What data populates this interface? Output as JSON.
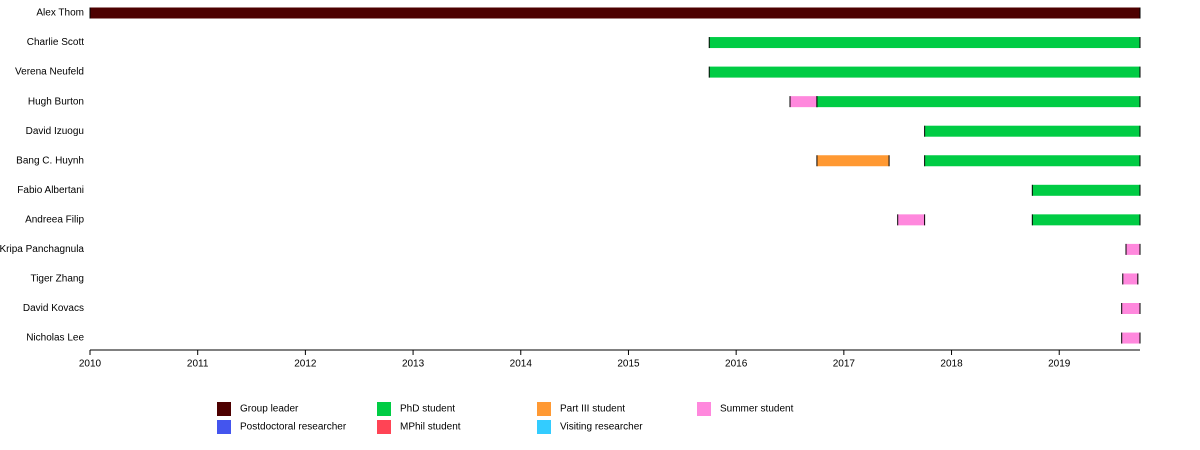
{
  "chart_data": {
    "type": "timeline",
    "rows": [
      {
        "name": "Alex Thom",
        "bars": [
          {
            "start": 2010,
            "end": 2019.75,
            "role": "Group leader"
          }
        ]
      },
      {
        "name": "Charlie Scott",
        "bars": [
          {
            "start": 2015.75,
            "end": 2019.75,
            "role": "PhD student"
          }
        ]
      },
      {
        "name": "Verena Neufeld",
        "bars": [
          {
            "start": 2015.75,
            "end": 2019.75,
            "role": "PhD student"
          }
        ]
      },
      {
        "name": "Hugh Burton",
        "bars": [
          {
            "start": 2016.5,
            "end": 2016.75,
            "role": "Summer student"
          },
          {
            "start": 2016.75,
            "end": 2019.75,
            "role": "PhD student"
          }
        ]
      },
      {
        "name": "David Izuogu",
        "bars": [
          {
            "start": 2017.75,
            "end": 2019.75,
            "role": "PhD student"
          }
        ]
      },
      {
        "name": "Bang C. Huynh",
        "bars": [
          {
            "start": 2016.75,
            "end": 2017.42,
            "role": "Part III student"
          },
          {
            "start": 2017.75,
            "end": 2019.75,
            "role": "PhD student"
          }
        ]
      },
      {
        "name": "Fabio Albertani",
        "bars": [
          {
            "start": 2018.75,
            "end": 2019.75,
            "role": "PhD student"
          }
        ]
      },
      {
        "name": "Andreea Filip",
        "bars": [
          {
            "start": 2017.5,
            "end": 2017.75,
            "role": "Summer student"
          },
          {
            "start": 2018.75,
            "end": 2019.75,
            "role": "PhD student"
          }
        ]
      },
      {
        "name": "Kripa Panchagnula",
        "bars": [
          {
            "start": 2019.62,
            "end": 2019.75,
            "role": "Summer student"
          }
        ]
      },
      {
        "name": "Tiger Zhang",
        "bars": [
          {
            "start": 2019.59,
            "end": 2019.73,
            "role": "Summer student"
          }
        ]
      },
      {
        "name": "David Kovacs",
        "bars": [
          {
            "start": 2019.58,
            "end": 2019.75,
            "role": "Summer student"
          }
        ]
      },
      {
        "name": "Nicholas Lee",
        "bars": [
          {
            "start": 2019.58,
            "end": 2019.75,
            "role": "Summer student"
          }
        ]
      }
    ],
    "legend": [
      {
        "name": "Group leader",
        "color": "#4d0000"
      },
      {
        "name": "Postdoctoral researcher",
        "color": "#4455ee"
      },
      {
        "name": "PhD student",
        "color": "#00cc44"
      },
      {
        "name": "MPhil student",
        "color": "#ff4455"
      },
      {
        "name": "Part III student",
        "color": "#ff9933"
      },
      {
        "name": "Visiting researcher",
        "color": "#33ccff"
      },
      {
        "name": "Summer student",
        "color": "#ff88dd"
      }
    ],
    "xlim": [
      2010,
      2019.75
    ],
    "xticks": [
      2010,
      2011,
      2012,
      2013,
      2014,
      2015,
      2016,
      2017,
      2018,
      2019
    ]
  }
}
